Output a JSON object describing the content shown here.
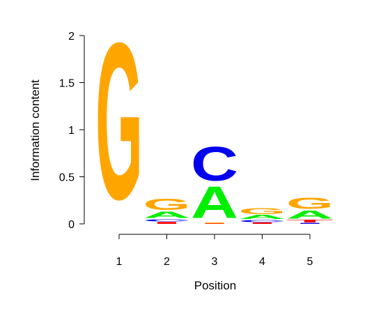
{
  "chart_data": {
    "type": "sequence-logo",
    "xlabel": "Position",
    "ylabel": "Information content",
    "ylim": [
      0,
      2
    ],
    "y_ticks": [
      "0",
      "0.5",
      "1",
      "1.5",
      "2"
    ],
    "x_ticks": [
      "1",
      "2",
      "3",
      "4",
      "5"
    ],
    "colors": {
      "A": "#00ee00",
      "C": "#0000ee",
      "G": "#ffa500",
      "T": "#ff0000"
    },
    "positions": [
      {
        "label": "1",
        "stack": [
          {
            "base": "G",
            "height": 1.93
          }
        ]
      },
      {
        "label": "2",
        "stack": [
          {
            "base": "T",
            "height": 0.02
          },
          {
            "base": "C",
            "height": 0.03
          },
          {
            "base": "A",
            "height": 0.08
          },
          {
            "base": "G",
            "height": 0.14
          }
        ]
      },
      {
        "label": "3",
        "stack": [
          {
            "base": "T",
            "height": 0.005
          },
          {
            "base": "G",
            "height": 0.005
          },
          {
            "base": "A",
            "height": 0.39
          },
          {
            "base": "C",
            "height": 0.42
          }
        ]
      },
      {
        "label": "4",
        "stack": [
          {
            "base": "T",
            "height": 0.015
          },
          {
            "base": "C",
            "height": 0.03
          },
          {
            "base": "A",
            "height": 0.05
          },
          {
            "base": "G",
            "height": 0.07
          }
        ]
      },
      {
        "label": "5",
        "stack": [
          {
            "base": "C",
            "height": 0.01
          },
          {
            "base": "T",
            "height": 0.03
          },
          {
            "base": "A",
            "height": 0.1
          },
          {
            "base": "G",
            "height": 0.14
          }
        ]
      }
    ]
  }
}
